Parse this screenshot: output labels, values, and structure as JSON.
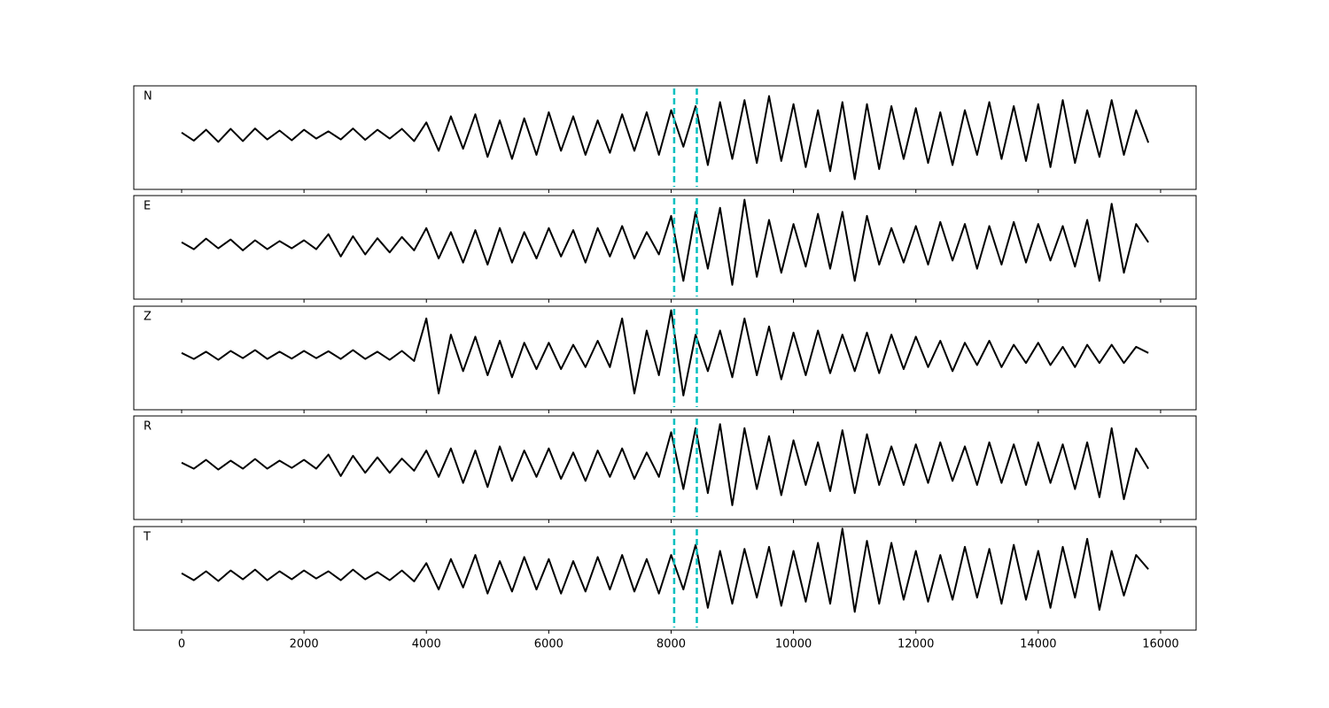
{
  "chart_data": {
    "type": "line",
    "layout": "stacked",
    "x": [
      0,
      200,
      400,
      600,
      800,
      1000,
      1200,
      1400,
      1600,
      1800,
      2000,
      2200,
      2400,
      2600,
      2800,
      3000,
      3200,
      3400,
      3600,
      3800,
      4000,
      4200,
      4400,
      4600,
      4800,
      5000,
      5200,
      5400,
      5600,
      5800,
      6000,
      6200,
      6400,
      6600,
      6800,
      7000,
      7200,
      7400,
      7600,
      7800,
      8000,
      8200,
      8400,
      8600,
      8800,
      9000,
      9200,
      9400,
      9600,
      9800,
      10000,
      10200,
      10400,
      10600,
      10800,
      11000,
      11200,
      11400,
      11600,
      11800,
      12000,
      12200,
      12400,
      12600,
      12800,
      13000,
      13200,
      13400,
      13600,
      13800,
      14000,
      14200,
      14400,
      14600,
      14800,
      15000,
      15200,
      15400,
      15600,
      15800
    ],
    "series": [
      {
        "name": "N",
        "color": "#000000",
        "values": [
          0.05,
          -0.15,
          0.12,
          -0.18,
          0.14,
          -0.16,
          0.15,
          -0.12,
          0.1,
          -0.14,
          0.12,
          -0.1,
          0.08,
          -0.12,
          0.15,
          -0.13,
          0.12,
          -0.1,
          0.14,
          -0.16,
          0.3,
          -0.4,
          0.45,
          -0.35,
          0.5,
          -0.55,
          0.35,
          -0.6,
          0.4,
          -0.5,
          0.55,
          -0.4,
          0.45,
          -0.5,
          0.35,
          -0.45,
          0.5,
          -0.4,
          0.55,
          -0.5,
          0.6,
          -0.3,
          0.7,
          -0.75,
          0.8,
          -0.6,
          0.85,
          -0.7,
          0.95,
          -0.65,
          0.75,
          -0.8,
          0.6,
          -0.9,
          0.8,
          -1.1,
          0.75,
          -0.85,
          0.7,
          -0.6,
          0.65,
          -0.7,
          0.55,
          -0.75,
          0.6,
          -0.5,
          0.8,
          -0.6,
          0.7,
          -0.65,
          0.75,
          -0.8,
          0.85,
          -0.7,
          0.6,
          -0.55,
          0.85,
          -0.5,
          0.6,
          -0.2
        ]
      },
      {
        "name": "E",
        "color": "#000000",
        "values": [
          0.05,
          -0.12,
          0.14,
          -0.1,
          0.12,
          -0.15,
          0.1,
          -0.12,
          0.08,
          -0.1,
          0.1,
          -0.12,
          0.25,
          -0.3,
          0.2,
          -0.25,
          0.15,
          -0.2,
          0.18,
          -0.15,
          0.4,
          -0.35,
          0.3,
          -0.45,
          0.35,
          -0.5,
          0.4,
          -0.45,
          0.3,
          -0.35,
          0.4,
          -0.3,
          0.35,
          -0.45,
          0.4,
          -0.3,
          0.45,
          -0.35,
          0.3,
          -0.25,
          0.7,
          -0.9,
          0.8,
          -0.6,
          0.9,
          -1.0,
          1.1,
          -0.8,
          0.6,
          -0.7,
          0.5,
          -0.55,
          0.75,
          -0.6,
          0.8,
          -0.9,
          0.7,
          -0.5,
          0.4,
          -0.45,
          0.45,
          -0.5,
          0.55,
          -0.4,
          0.5,
          -0.6,
          0.45,
          -0.5,
          0.55,
          -0.45,
          0.5,
          -0.4,
          0.45,
          -0.55,
          0.6,
          -0.9,
          1.0,
          -0.7,
          0.5,
          0.05
        ]
      },
      {
        "name": "Z",
        "color": "#000000",
        "values": [
          0.05,
          -0.1,
          0.08,
          -0.12,
          0.1,
          -0.08,
          0.12,
          -0.1,
          0.08,
          -0.09,
          0.1,
          -0.08,
          0.09,
          -0.1,
          0.12,
          -0.1,
          0.08,
          -0.12,
          0.1,
          -0.15,
          0.9,
          -0.95,
          0.5,
          -0.4,
          0.45,
          -0.5,
          0.35,
          -0.55,
          0.3,
          -0.35,
          0.3,
          -0.35,
          0.25,
          -0.3,
          0.35,
          -0.3,
          0.9,
          -0.95,
          0.6,
          -0.5,
          1.1,
          -1.0,
          0.5,
          -0.4,
          0.6,
          -0.55,
          0.9,
          -0.5,
          0.7,
          -0.6,
          0.55,
          -0.5,
          0.6,
          -0.45,
          0.5,
          -0.4,
          0.55,
          -0.45,
          0.5,
          -0.35,
          0.45,
          -0.3,
          0.35,
          -0.4,
          0.3,
          -0.25,
          0.35,
          -0.3,
          0.25,
          -0.2,
          0.3,
          -0.25,
          0.2,
          -0.3,
          0.25,
          -0.2,
          0.25,
          -0.2,
          0.2,
          0.05
        ]
      },
      {
        "name": "R",
        "color": "#000000",
        "values": [
          0.05,
          -0.1,
          0.12,
          -0.12,
          0.1,
          -0.1,
          0.14,
          -0.1,
          0.1,
          -0.08,
          0.12,
          -0.1,
          0.25,
          -0.28,
          0.22,
          -0.2,
          0.18,
          -0.2,
          0.15,
          -0.15,
          0.35,
          -0.3,
          0.4,
          -0.45,
          0.35,
          -0.55,
          0.45,
          -0.4,
          0.35,
          -0.3,
          0.4,
          -0.35,
          0.3,
          -0.4,
          0.35,
          -0.3,
          0.4,
          -0.35,
          0.3,
          -0.3,
          0.8,
          -0.6,
          0.9,
          -0.7,
          1.0,
          -1.0,
          0.9,
          -0.6,
          0.7,
          -0.75,
          0.6,
          -0.5,
          0.55,
          -0.65,
          0.85,
          -0.7,
          0.75,
          -0.5,
          0.45,
          -0.5,
          0.5,
          -0.45,
          0.55,
          -0.4,
          0.45,
          -0.5,
          0.55,
          -0.45,
          0.5,
          -0.5,
          0.55,
          -0.45,
          0.5,
          -0.6,
          0.55,
          -0.8,
          0.9,
          -0.85,
          0.4,
          -0.1
        ]
      },
      {
        "name": "T",
        "color": "#000000",
        "values": [
          0.05,
          -0.12,
          0.1,
          -0.14,
          0.12,
          -0.1,
          0.14,
          -0.12,
          0.1,
          -0.1,
          0.12,
          -0.08,
          0.1,
          -0.12,
          0.14,
          -0.1,
          0.08,
          -0.12,
          0.12,
          -0.15,
          0.3,
          -0.35,
          0.4,
          -0.3,
          0.5,
          -0.45,
          0.35,
          -0.4,
          0.45,
          -0.35,
          0.4,
          -0.45,
          0.35,
          -0.4,
          0.45,
          -0.35,
          0.5,
          -0.4,
          0.4,
          -0.45,
          0.5,
          -0.35,
          0.75,
          -0.8,
          0.6,
          -0.7,
          0.65,
          -0.55,
          0.7,
          -0.75,
          0.6,
          -0.65,
          0.8,
          -0.7,
          1.15,
          -0.9,
          0.85,
          -0.7,
          0.8,
          -0.6,
          0.6,
          -0.65,
          0.5,
          -0.6,
          0.7,
          -0.55,
          0.65,
          -0.7,
          0.75,
          -0.6,
          0.6,
          -0.8,
          0.7,
          -0.55,
          0.9,
          -0.85,
          0.6,
          -0.5,
          0.5,
          0.15
        ]
      }
    ],
    "xlim": [
      -782,
      16580
    ],
    "ylim": [
      -1.35,
      1.2
    ],
    "xticks": [
      0,
      2000,
      4000,
      6000,
      8000,
      10000,
      12000,
      14000,
      16000
    ],
    "vlines": [
      8050,
      8420
    ],
    "vline_color": "#00bfbf"
  }
}
